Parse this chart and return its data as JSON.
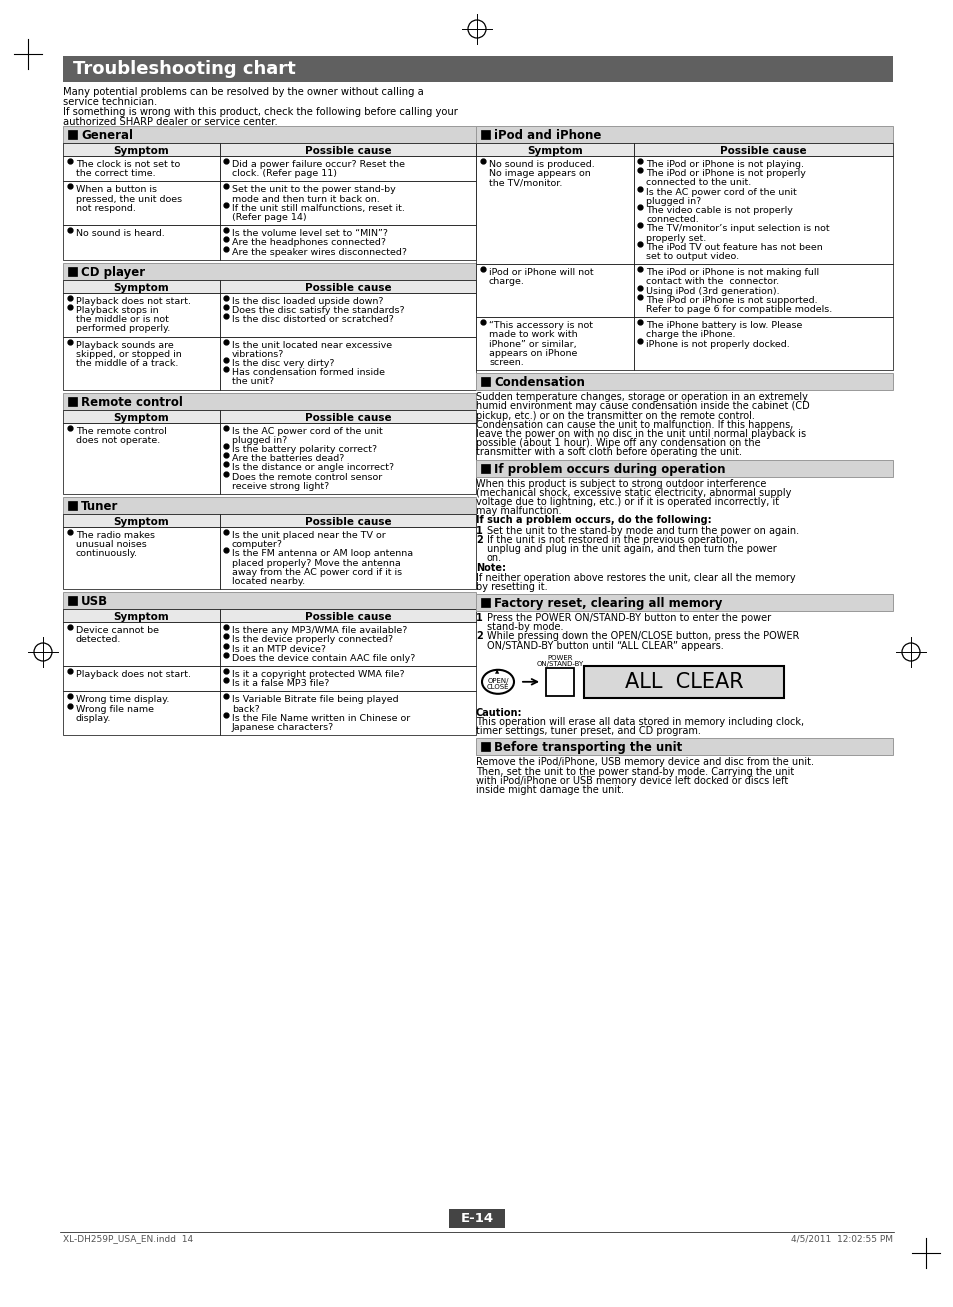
{
  "page_bg": "#ffffff",
  "title_bg": "#606060",
  "title_text": "Troubleshooting chart",
  "title_color": "#ffffff",
  "section_header_bg": "#d4d4d4",
  "table_header_bg": "#e8e8e8",
  "intro_line1": "Many potential problems can be resolved by the owner without calling a service technician.",
  "intro_line2": "If something is wrong with this product, check the following before calling your authorized SHARP dealer or service center.",
  "page_num": "E-14",
  "footer_left": "XL-DH259P_USA_EN.indd  14",
  "footer_right": "4/5/2011  12:02:55 PM"
}
